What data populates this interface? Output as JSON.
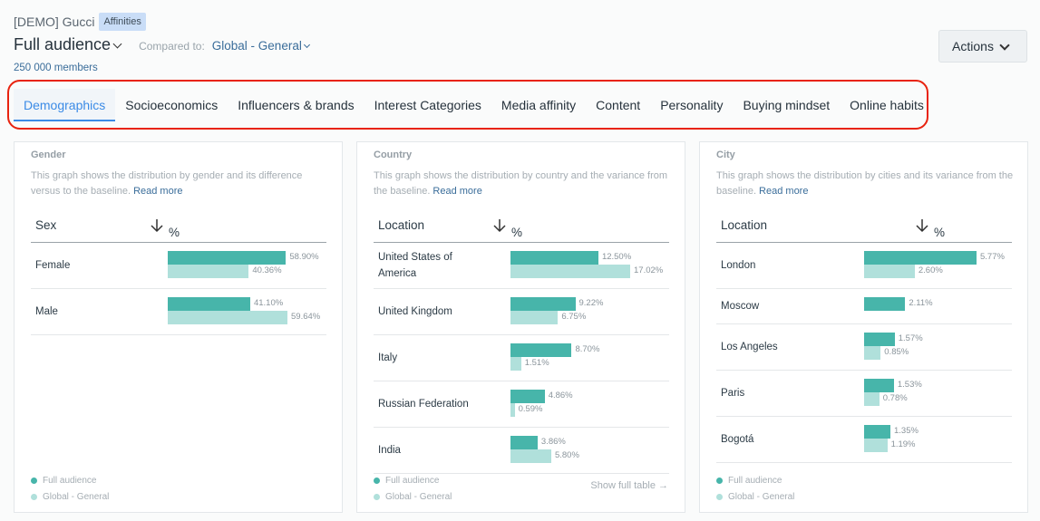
{
  "header": {
    "brand": "[DEMO] Gucci",
    "badge": "Affinities",
    "audience": "Full audience",
    "compared_label": "Compared to:",
    "compared_value": "Global - General",
    "members": "250 000 members",
    "actions": "Actions"
  },
  "tabs": [
    "Demographics",
    "Socioeconomics",
    "Influencers & brands",
    "Interest Categories",
    "Media affinity",
    "Content",
    "Personality",
    "Buying mindset",
    "Online habits"
  ],
  "active_tab": "Demographics",
  "colors": {
    "full_audience": "#47b5aa",
    "baseline": "#b0e0db",
    "accent": "#3b8be6",
    "highlight": "#e8230f"
  },
  "legend": {
    "full": "Full audience",
    "baseline": "Global - General"
  },
  "cards": [
    {
      "title": "Gender",
      "desc": "This graph shows the distribution by gender and its difference versus to the baseline.",
      "read_more": "Read more",
      "col1": "Sex",
      "col2": "%",
      "sort_icon": "arrow-down-icon",
      "rows": [
        {
          "label": "Female",
          "full": "58.90%",
          "base": "40.36%"
        },
        {
          "label": "Male",
          "full": "41.10%",
          "base": "59.64%"
        }
      ]
    },
    {
      "title": "Country",
      "desc": "This graph shows the distribution by country and the variance from the baseline.",
      "read_more": "Read more",
      "col1": "Location",
      "col2": "%",
      "sort_icon": "arrow-down-icon",
      "show_full": "Show full table",
      "rows": [
        {
          "label": "United States of America",
          "full": "12.50%",
          "base": "17.02%"
        },
        {
          "label": "United Kingdom",
          "full": "9.22%",
          "base": "6.75%"
        },
        {
          "label": "Italy",
          "full": "8.70%",
          "base": "1.51%"
        },
        {
          "label": "Russian Federation",
          "full": "4.86%",
          "base": "0.59%"
        },
        {
          "label": "India",
          "full": "3.86%",
          "base": "5.80%"
        }
      ]
    },
    {
      "title": "City",
      "desc": "This graph shows the distribution by cities and its variance from the baseline.",
      "read_more": "Read more",
      "col1": "Location",
      "col2": "%",
      "sort_icon": "arrow-down-icon",
      "rows": [
        {
          "label": "London",
          "full": "5.77%",
          "base": "2.60%"
        },
        {
          "label": "Moscow",
          "full": "2.11%",
          "base": null
        },
        {
          "label": "Los Angeles",
          "full": "1.57%",
          "base": "0.85%"
        },
        {
          "label": "Paris",
          "full": "1.53%",
          "base": "0.78%"
        },
        {
          "label": "Bogotá",
          "full": "1.35%",
          "base": "1.19%"
        }
      ]
    }
  ]
}
